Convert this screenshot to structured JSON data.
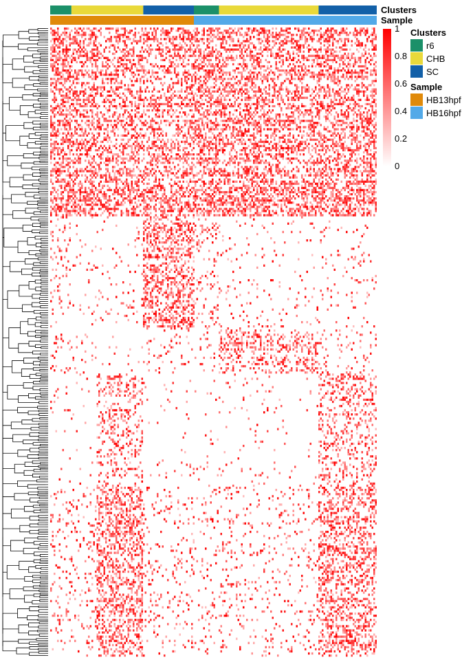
{
  "chart_data": {
    "type": "heatmap",
    "annotations": [
      {
        "label": "Clusters",
        "segments": [
          {
            "group": "r6",
            "start": 0.0,
            "end": 0.065
          },
          {
            "group": "CHB",
            "start": 0.065,
            "end": 0.285
          },
          {
            "group": "SC",
            "start": 0.285,
            "end": 0.44
          },
          {
            "group": "r6",
            "start": 0.44,
            "end": 0.517
          },
          {
            "group": "CHB",
            "start": 0.517,
            "end": 0.822
          },
          {
            "group": "SC",
            "start": 0.822,
            "end": 1.0
          }
        ]
      },
      {
        "label": "Sample",
        "segments": [
          {
            "group": "HB13hpf",
            "start": 0.0,
            "end": 0.44
          },
          {
            "group": "HB16hpf",
            "start": 0.44,
            "end": 1.0
          }
        ]
      }
    ],
    "colorbar": {
      "ticks": [
        "1",
        "0.8",
        "0.6",
        "0.4",
        "0.2",
        "0"
      ],
      "values": [
        1,
        0.8,
        0.6,
        0.4,
        0.2,
        0
      ],
      "low_color": "#ffffff",
      "high_color": "#ff0000"
    },
    "legend": {
      "placement": "top-right",
      "groups": [
        {
          "title": "Clusters",
          "items": [
            {
              "label": "r6",
              "color": "#1b9069"
            },
            {
              "label": "CHB",
              "color": "#e9d93a"
            },
            {
              "label": "SC",
              "color": "#1260a8"
            }
          ]
        },
        {
          "title": "Sample",
          "items": [
            {
              "label": "HB13hpf",
              "color": "#e08a0a"
            },
            {
              "label": "HB16hpf",
              "color": "#52a9e8"
            }
          ]
        }
      ]
    },
    "row_blocks": [
      {
        "from": 0.0,
        "to": 0.3,
        "profile": [
          0.55,
          0.5,
          0.45,
          0.42,
          0.55,
          0.5,
          0.45,
          0.5
        ],
        "density": 0.62
      },
      {
        "from": 0.3,
        "to": 0.48,
        "profile": [
          0.18,
          0.06,
          0.06,
          0.6,
          0.18,
          0.08,
          0.06,
          0.06
        ],
        "density": 0.5
      },
      {
        "from": 0.48,
        "to": 0.55,
        "profile": [
          0.12,
          0.08,
          0.05,
          0.12,
          0.08,
          0.4,
          0.4,
          0.12
        ],
        "density": 0.5
      },
      {
        "from": 0.55,
        "to": 0.73,
        "profile": [
          0.04,
          0.04,
          0.35,
          0.04,
          0.03,
          0.04,
          0.04,
          0.4
        ],
        "density": 0.5
      },
      {
        "from": 0.73,
        "to": 1.0,
        "profile": [
          0.12,
          0.12,
          0.55,
          0.1,
          0.12,
          0.12,
          0.12,
          0.5
        ],
        "density": 0.55
      }
    ],
    "column_profile_breaks": [
      0.065,
      0.14,
      0.285,
      0.44,
      0.517,
      0.66,
      0.822,
      1.0
    ]
  }
}
